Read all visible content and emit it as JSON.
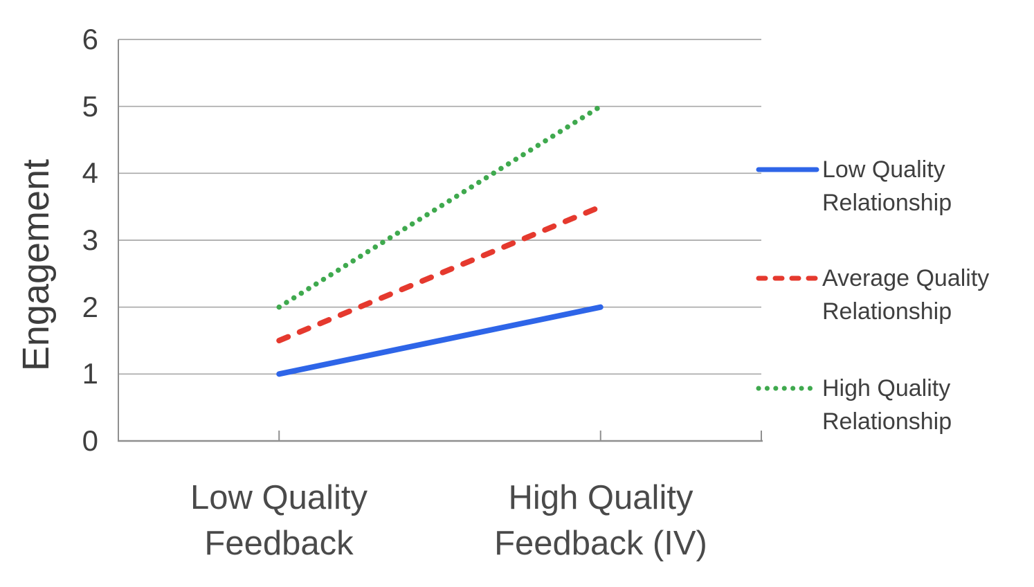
{
  "chart_data": {
    "type": "line",
    "title": "",
    "xlabel": "",
    "ylabel": "Engagement",
    "ylim": [
      0,
      6
    ],
    "yticks": [
      0,
      1,
      2,
      3,
      4,
      5,
      6
    ],
    "categories": [
      "Low Quality Feedback",
      "High Quality Feedback (IV)"
    ],
    "series": [
      {
        "name": "Low Quality Relationship",
        "values": [
          1,
          2
        ],
        "color": "#2e65e8",
        "style": "solid"
      },
      {
        "name": "Average Quality Relationship",
        "values": [
          1.5,
          3.5
        ],
        "color": "#e5392e",
        "style": "dashed"
      },
      {
        "name": "High Quality Relationship",
        "values": [
          2,
          5
        ],
        "color": "#3fa94e",
        "style": "dotted"
      }
    ],
    "legend_position": "right",
    "grid": "horizontal",
    "colors": {
      "grid_line": "#a8a8a8",
      "axis_line": "#8f8f8f",
      "tick_label_text": "#3f3f3f",
      "axis_title_text": "#3d3d3d",
      "category_label_text": "#4a4a4a",
      "legend_text": "#3f3f3f",
      "background": "#ffffff"
    }
  }
}
